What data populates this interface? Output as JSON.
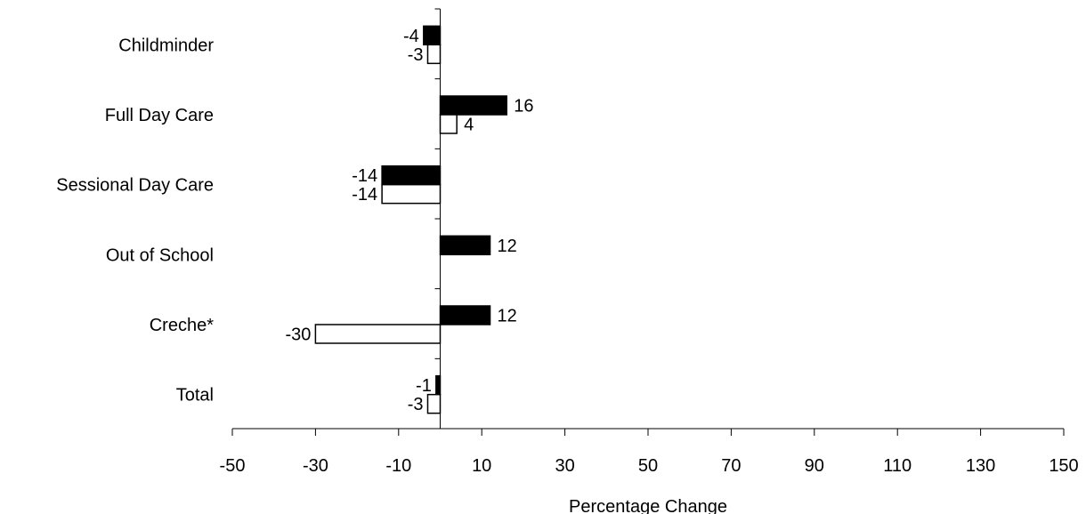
{
  "chart_data": {
    "type": "bar",
    "orientation": "horizontal",
    "categories": [
      "Childminder",
      "Full Day Care",
      "Sessional Day Care",
      "Out of School",
      "Creche*",
      "Total"
    ],
    "series": [
      {
        "values": [
          -4,
          16,
          -14,
          12,
          12,
          -1
        ],
        "color": "#000000"
      },
      {
        "values": [
          -3,
          4,
          -14,
          null,
          -30,
          -3
        ],
        "color": "#ffffff"
      }
    ],
    "xlabel": "Percentage Change",
    "ylabel": "",
    "xlim": [
      -50,
      150
    ],
    "xticks": [
      -50,
      -30,
      -10,
      10,
      30,
      50,
      70,
      90,
      110,
      130,
      150
    ],
    "grid": false,
    "legend": "none"
  }
}
